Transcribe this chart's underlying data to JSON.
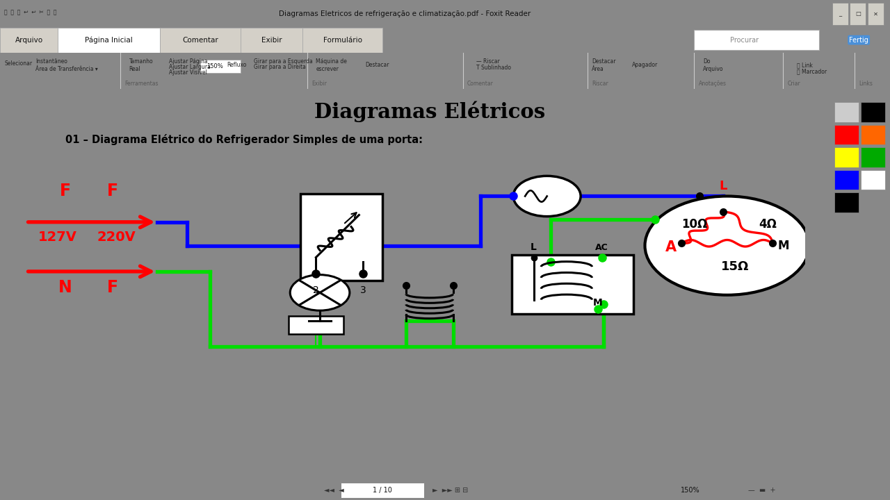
{
  "title": "Diagramas Elétricos",
  "subtitle": "01 – Diagrama Elétrico do Refrigerador Simples de uma porta:",
  "window_title": "Diagramas Eletricos de refrigeração e climatização.pdf - Foxit Reader",
  "blue": "#0000ff",
  "green": "#00dd00",
  "red": "#ff0000",
  "black": "#000000",
  "white": "#ffffff",
  "toolbar_gray": "#d4d0c8",
  "ribbon_bg": "#f0f0ea",
  "tab_active_bg": "#ffffff",
  "title_bar_bg": "#c8c4bc",
  "page_bg": "#ffffff",
  "outer_bg": "#888888"
}
